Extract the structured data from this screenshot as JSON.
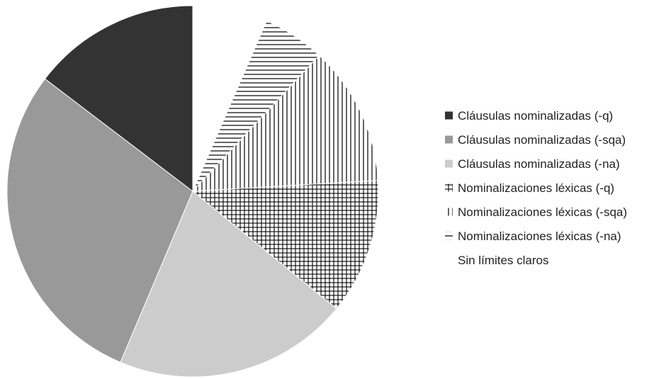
{
  "chart_data": {
    "type": "pie",
    "title": "",
    "start_angle_deg": 0,
    "direction": "clockwise",
    "slices": [
      {
        "label": "Sin límites claros",
        "value": 6.5,
        "fill": "#ffffff",
        "pattern": "none"
      },
      {
        "label": "Nominalizaciones léxicas (-na)",
        "value": 5.4,
        "fill": "#ffffff",
        "pattern": "horizontal"
      },
      {
        "label": "Nominalizaciones léxicas (-sqa)",
        "value": 12.1,
        "fill": "#ffffff",
        "pattern": "vertical"
      },
      {
        "label": "Nominalizaciones léxicas (-q)",
        "value": 11.8,
        "fill": "#ffffff",
        "pattern": "cross"
      },
      {
        "label": "Cláusulas nominalizadas (-na)",
        "value": 20.4,
        "fill": "#cccccc",
        "pattern": "none"
      },
      {
        "label": "Cláusulas nominalizadas (-sqa)",
        "value": 28.9,
        "fill": "#999999",
        "pattern": "none"
      },
      {
        "label": "Cláusulas nominalizadas (-q)",
        "value": 14.6,
        "fill": "#333333",
        "pattern": "none"
      }
    ],
    "legend": {
      "position": "right",
      "entries": [
        {
          "label": "Cláusulas nominalizadas (-q)",
          "marker": "solid",
          "color": "#333333"
        },
        {
          "label": "Cláusulas nominalizadas (-sqa)",
          "marker": "solid",
          "color": "#999999"
        },
        {
          "label": "Cláusulas nominalizadas (-na)",
          "marker": "solid",
          "color": "#cccccc"
        },
        {
          "label": "Nominalizaciones léxicas (-q)",
          "marker": "cross",
          "color": "#000000"
        },
        {
          "label": "Nominalizaciones léxicas (-sqa)",
          "marker": "vertical",
          "color": "#000000"
        },
        {
          "label": "Nominalizaciones léxicas (-na)",
          "marker": "horizontal",
          "color": "#000000"
        },
        {
          "label": "Sin límites claros",
          "marker": "none",
          "color": "#ffffff"
        }
      ]
    }
  }
}
